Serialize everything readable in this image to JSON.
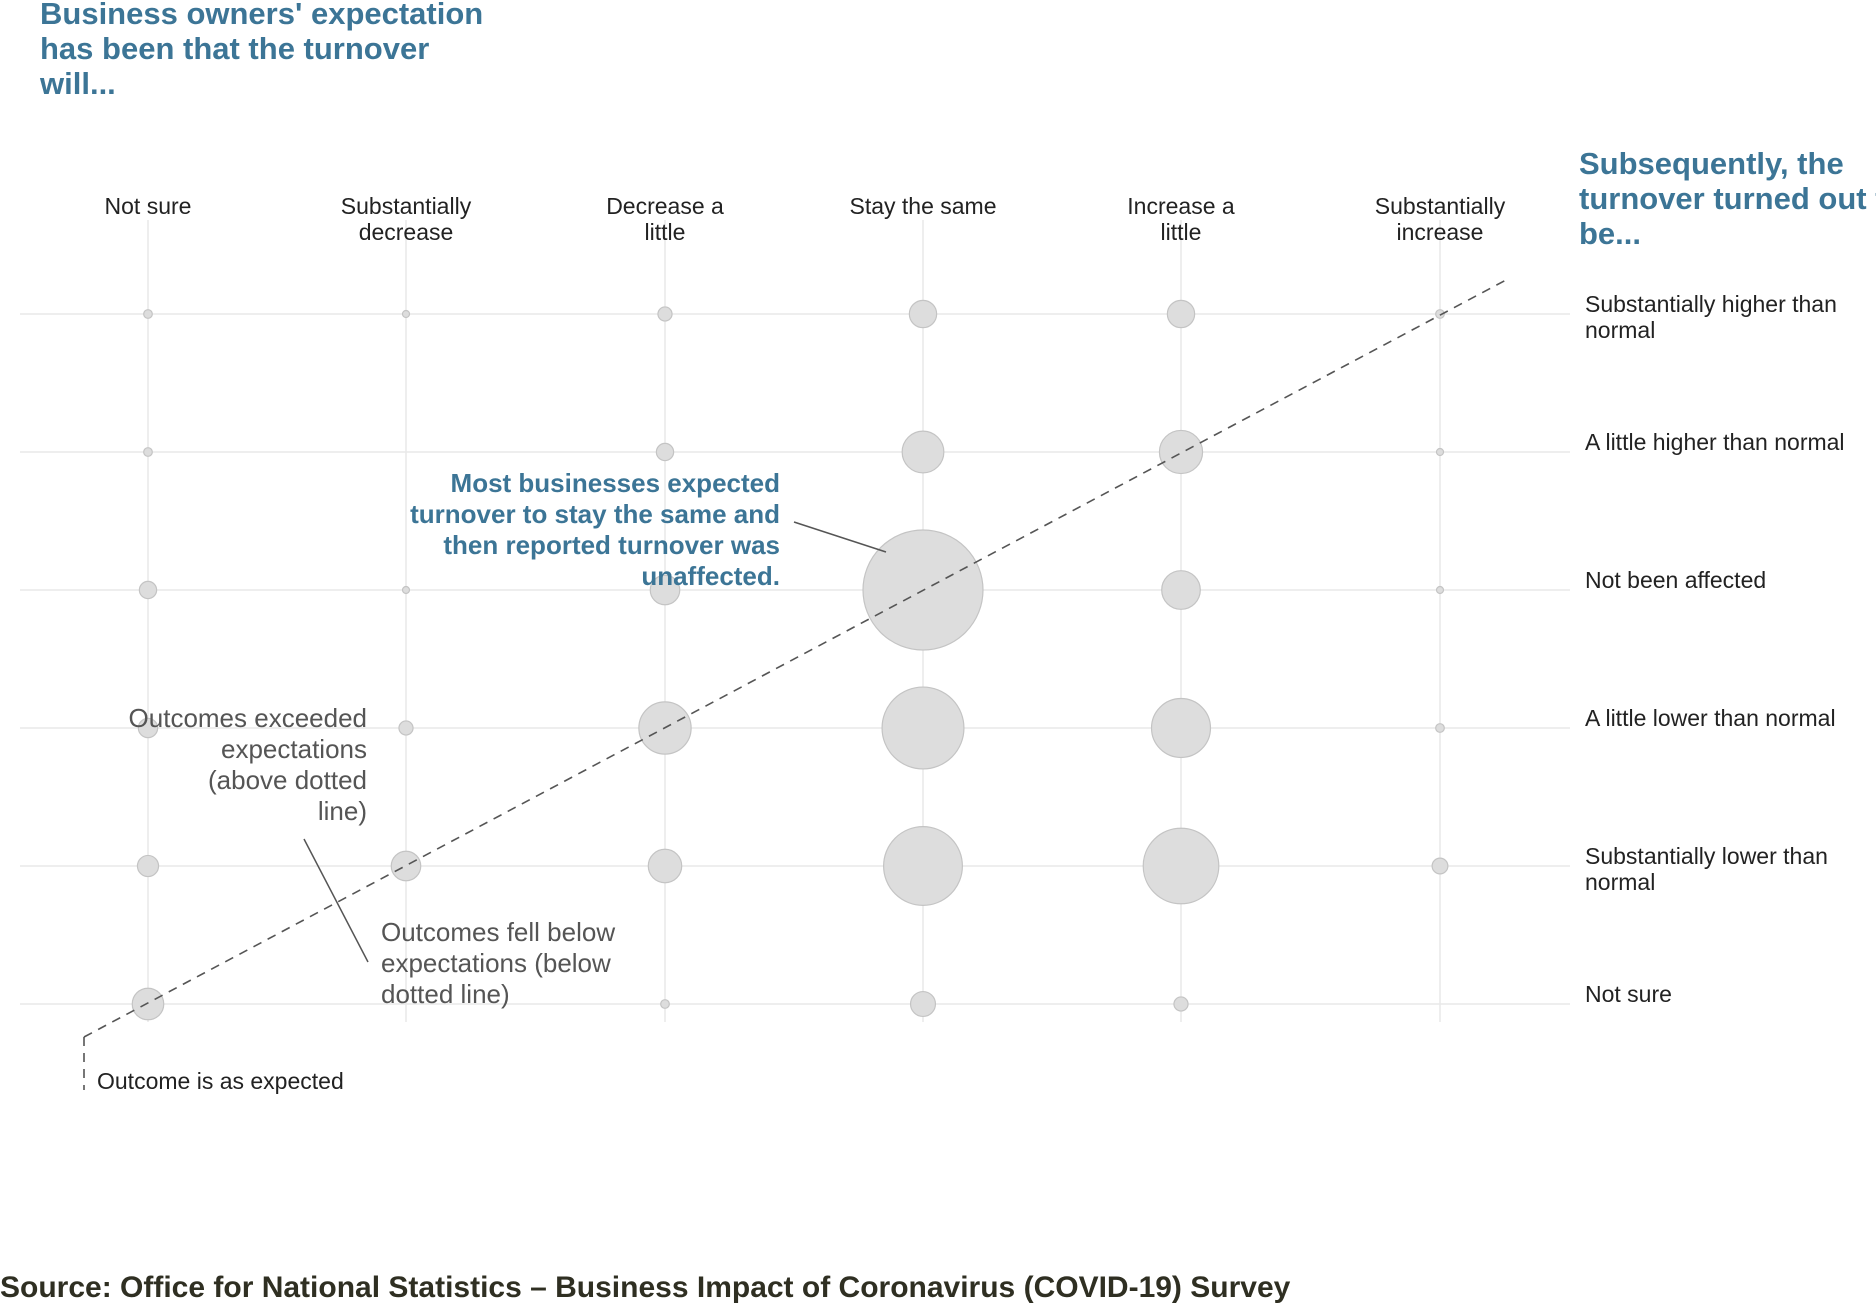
{
  "chart_data": {
    "type": "bubble",
    "title": "Business owners' expectation has been that the turnover will...",
    "right_title": "Subsequently, the turnover turned out to be...",
    "x_categories": [
      "Not sure",
      "Substantially decrease",
      "Decrease a little",
      "Stay the same",
      "Increase a little",
      "Substantially increase"
    ],
    "y_categories": [
      "Substantially higher than normal",
      "A little higher than normal",
      "Not been affected",
      "A little lower than normal",
      "Substantially lower than normal",
      "Not sure"
    ],
    "points": [
      {
        "x": "Not sure",
        "y": "Substantially higher than normal",
        "value": 0.3
      },
      {
        "x": "Substantially decrease",
        "y": "Substantially higher than normal",
        "value": 0.2
      },
      {
        "x": "Decrease a little",
        "y": "Substantially higher than normal",
        "value": 0.8
      },
      {
        "x": "Stay the same",
        "y": "Substantially higher than normal",
        "value": 3.0
      },
      {
        "x": "Increase a little",
        "y": "Substantially higher than normal",
        "value": 3.0
      },
      {
        "x": "Substantially increase",
        "y": "Substantially higher than normal",
        "value": 0.3
      },
      {
        "x": "Not sure",
        "y": "A little higher than normal",
        "value": 0.3
      },
      {
        "x": "Decrease a little",
        "y": "A little higher than normal",
        "value": 1.2
      },
      {
        "x": "Stay the same",
        "y": "A little higher than normal",
        "value": 7.0
      },
      {
        "x": "Increase a little",
        "y": "A little higher than normal",
        "value": 7.5
      },
      {
        "x": "Substantially increase",
        "y": "A little higher than normal",
        "value": 0.2
      },
      {
        "x": "Not sure",
        "y": "Not been affected",
        "value": 1.2
      },
      {
        "x": "Substantially decrease",
        "y": "Not been affected",
        "value": 0.15
      },
      {
        "x": "Decrease a little",
        "y": "Not been affected",
        "value": 3.5
      },
      {
        "x": "Stay the same",
        "y": "Not been affected",
        "value": 58.0
      },
      {
        "x": "Increase a little",
        "y": "Not been affected",
        "value": 6.0
      },
      {
        "x": "Substantially increase",
        "y": "Not been affected",
        "value": 0.15
      },
      {
        "x": "Not sure",
        "y": "A little lower than normal",
        "value": 1.5
      },
      {
        "x": "Substantially decrease",
        "y": "A little lower than normal",
        "value": 0.8
      },
      {
        "x": "Decrease a little",
        "y": "A little lower than normal",
        "value": 11.0
      },
      {
        "x": "Stay the same",
        "y": "A little lower than normal",
        "value": 27.0
      },
      {
        "x": "Increase a little",
        "y": "A little lower than normal",
        "value": 14.0
      },
      {
        "x": "Substantially increase",
        "y": "A little lower than normal",
        "value": 0.3
      },
      {
        "x": "Not sure",
        "y": "Substantially lower than normal",
        "value": 1.8
      },
      {
        "x": "Substantially decrease",
        "y": "Substantially lower than normal",
        "value": 3.5
      },
      {
        "x": "Decrease a little",
        "y": "Substantially lower than normal",
        "value": 4.5
      },
      {
        "x": "Stay the same",
        "y": "Substantially lower than normal",
        "value": 25.0
      },
      {
        "x": "Increase a little",
        "y": "Substantially lower than normal",
        "value": 23.0
      },
      {
        "x": "Substantially increase",
        "y": "Substantially lower than normal",
        "value": 1.0
      },
      {
        "x": "Not sure",
        "y": "Not sure",
        "value": 4.0
      },
      {
        "x": "Decrease a little",
        "y": "Not sure",
        "value": 0.3
      },
      {
        "x": "Stay the same",
        "y": "Not sure",
        "value": 2.5
      },
      {
        "x": "Increase a little",
        "y": "Not sure",
        "value": 0.8
      }
    ],
    "annotations": {
      "highlight": "Most businesses expected turnover to stay the same and then reported turnover was unaffected.",
      "above": "Outcomes exceeded expectations (above dotted line)",
      "below": "Outcomes fell below expectations (below dotted line)",
      "legend": "Outcome is as expected"
    },
    "source": "Source: Office for National Statistics – Business Impact of Coronavirus (COVID-19) Survey",
    "colors": {
      "title": "#3c7596",
      "bubble_fill": "#dddddd",
      "bubble_stroke": "#c4c4c4",
      "grid": "#e9e9e9",
      "annotation": "#555555",
      "source": "#2f2f22"
    }
  }
}
